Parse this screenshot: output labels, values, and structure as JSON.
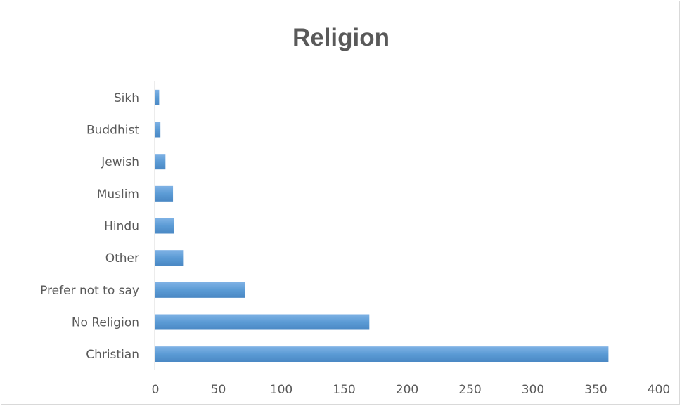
{
  "chart_data": {
    "type": "bar",
    "orientation": "horizontal",
    "title": "Religion",
    "xlabel": "",
    "ylabel": "",
    "categories": [
      "Christian",
      "No Religion",
      "Prefer not to say",
      "Other",
      "Hindu",
      "Muslim",
      "Jewish",
      "Buddhist",
      "Sikh"
    ],
    "values": [
      360,
      170,
      71,
      22,
      15,
      14,
      8,
      4,
      3
    ],
    "xlim": [
      0,
      400
    ],
    "xticks": [
      "0",
      "50",
      "100",
      "150",
      "200",
      "250",
      "300",
      "350",
      "400"
    ],
    "grid": false,
    "legend": "none",
    "bar_color": "#5b9bd5"
  }
}
